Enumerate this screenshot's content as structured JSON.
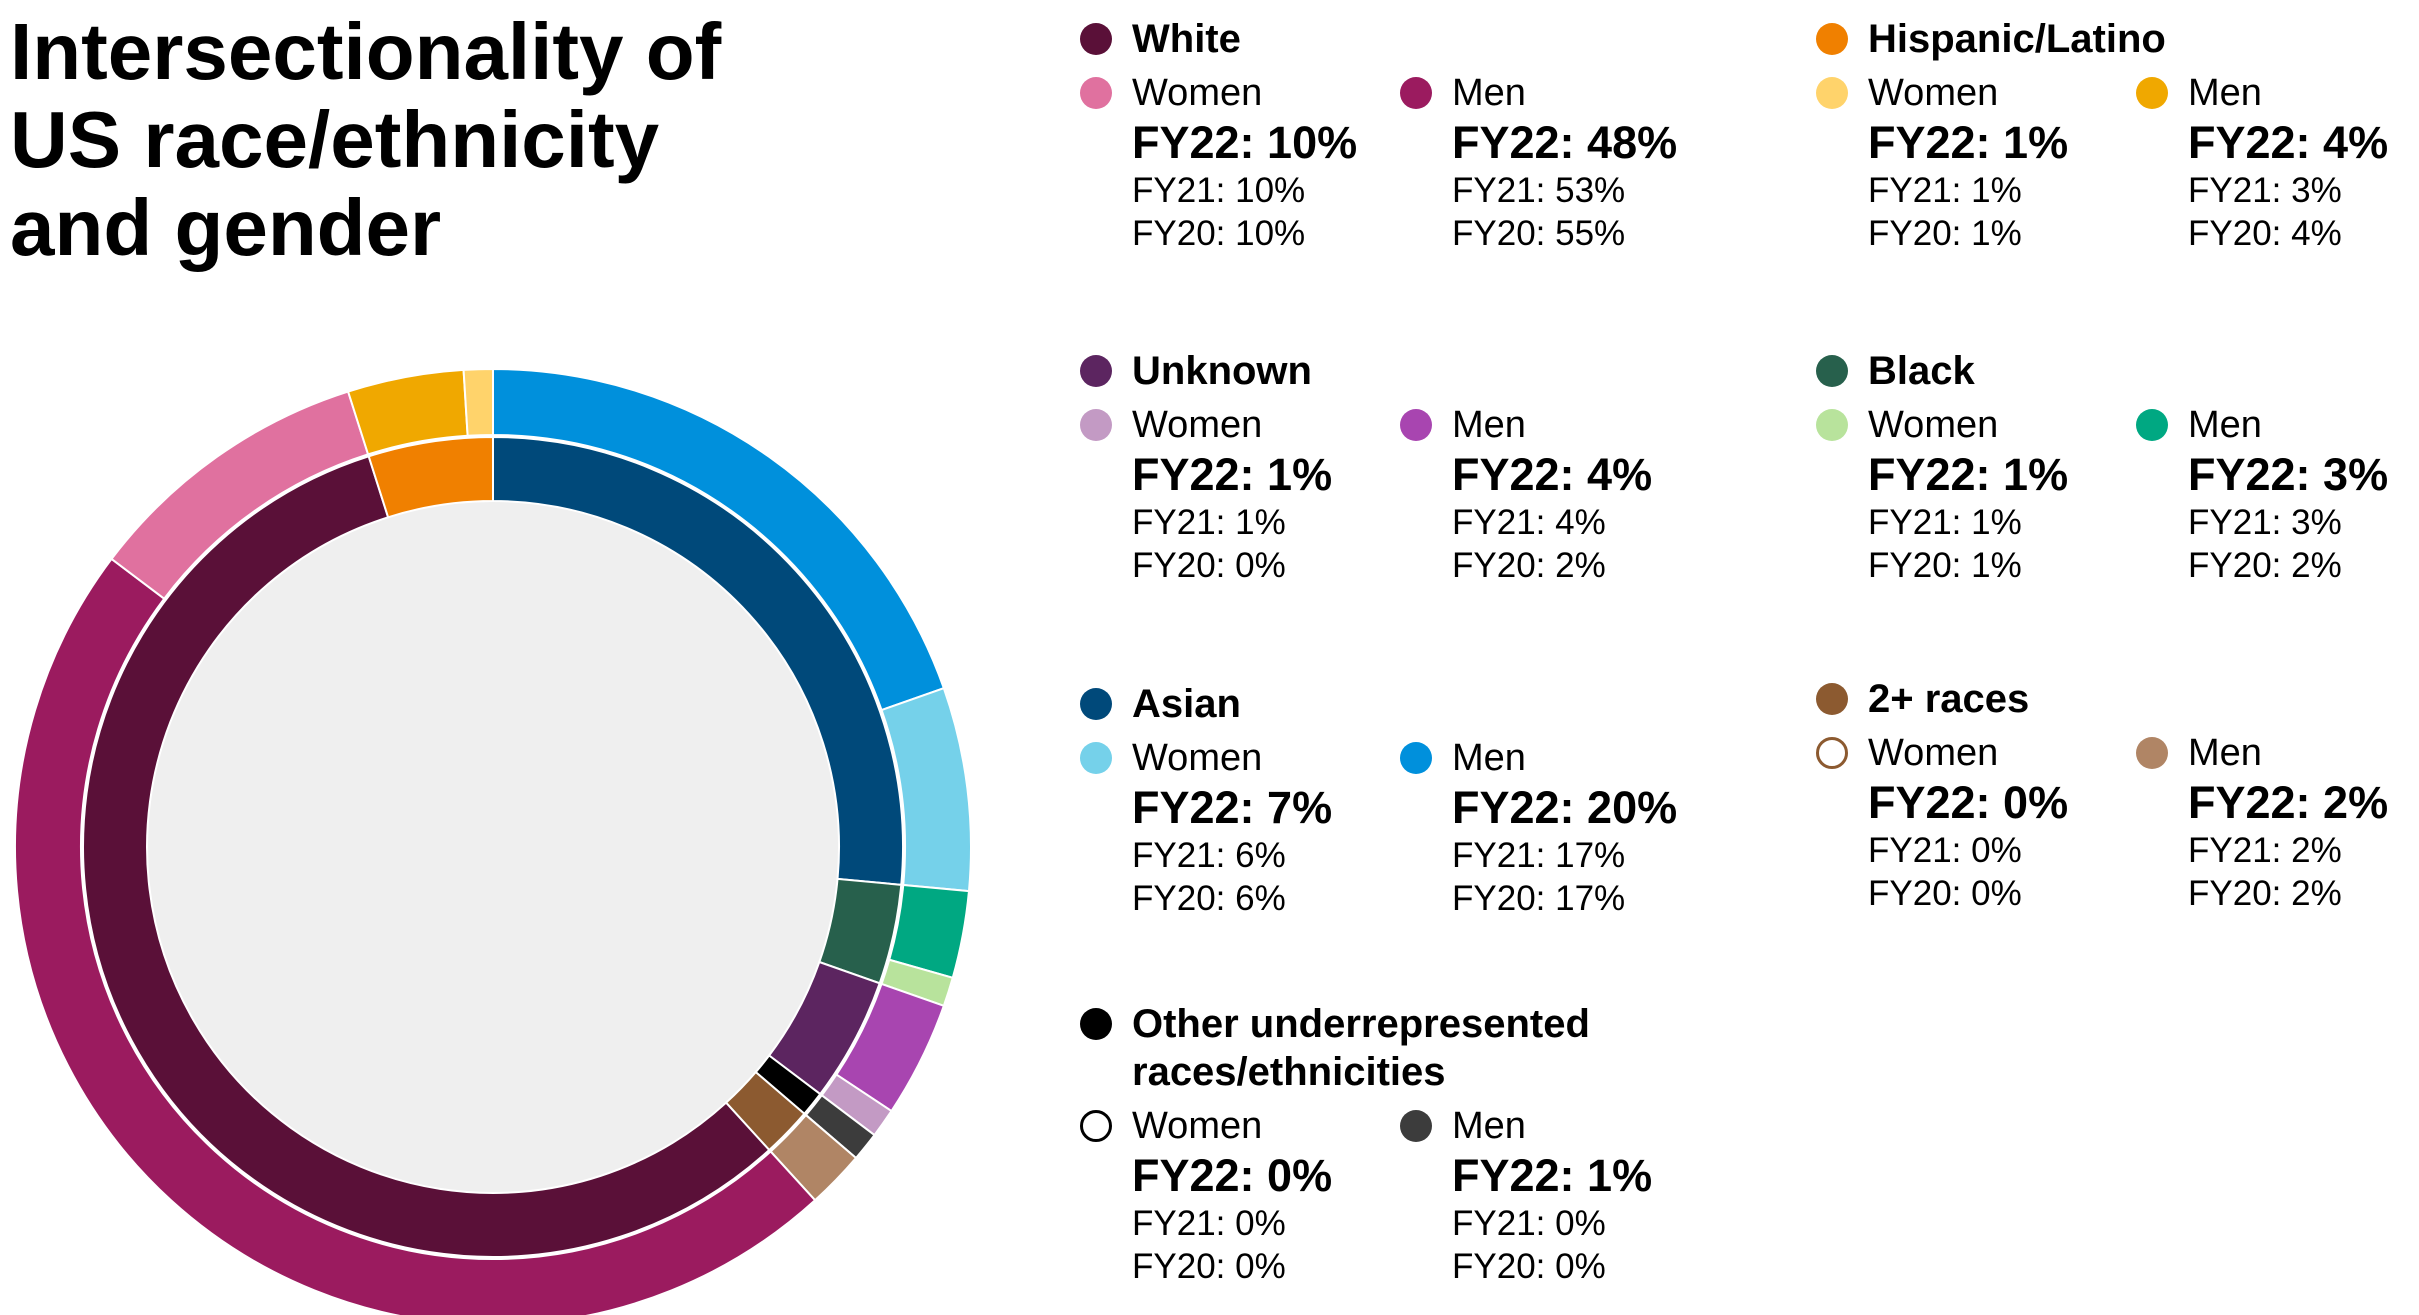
{
  "chart_data": {
    "type": "sunburst",
    "title": "Intersectionality of US race/ethnicity and gender",
    "groups": [
      {
        "name": "Asian",
        "color": "#00497a",
        "children": [
          {
            "name": "Men",
            "color": "#0090dc",
            "values": [
              20,
              17,
              17
            ],
            "value_labels": [
              "FY22: 20%",
              "FY21: 17%",
              "FY20: 17%"
            ]
          },
          {
            "name": "Women",
            "color": "#75d1ea",
            "values": [
              7,
              6,
              6
            ],
            "value_labels": [
              "FY22: 7%",
              "FY21: 6%",
              "FY20: 6%"
            ]
          }
        ]
      },
      {
        "name": "Black",
        "color": "#27604c",
        "children": [
          {
            "name": "Men",
            "color": "#00a882",
            "values": [
              3,
              3,
              2
            ],
            "value_labels": [
              "FY22: 3%",
              "FY21: 3%",
              "FY20: 2%"
            ]
          },
          {
            "name": "Women",
            "color": "#b8e39c",
            "values": [
              1,
              1,
              1
            ],
            "value_labels": [
              "FY22: 1%",
              "FY21: 1%",
              "FY20: 1%"
            ]
          }
        ]
      },
      {
        "name": "Unknown",
        "color": "#5c2560",
        "children": [
          {
            "name": "Men",
            "color": "#a845b0",
            "values": [
              4,
              4,
              2
            ],
            "value_labels": [
              "FY22: 4%",
              "FY21: 4%",
              "FY20: 2%"
            ]
          },
          {
            "name": "Women",
            "color": "#c39ac4",
            "values": [
              1,
              1,
              0
            ],
            "value_labels": [
              "FY22: 1%",
              "FY21: 1%",
              "FY20: 0%"
            ]
          }
        ]
      },
      {
        "name": "Other underrepresented races/ethnicities",
        "color": "#000000",
        "children": [
          {
            "name": "Men",
            "color": "#3c3c3c",
            "values": [
              1,
              0,
              0
            ],
            "value_labels": [
              "FY22: 1%",
              "FY21: 0%",
              "FY20: 0%"
            ]
          },
          {
            "name": "Women",
            "color": "#000000",
            "hollow": true,
            "values": [
              0,
              0,
              0
            ],
            "value_labels": [
              "FY22: 0%",
              "FY21: 0%",
              "FY20: 0%"
            ]
          }
        ]
      },
      {
        "name": "2+ races",
        "color": "#8c5a30",
        "children": [
          {
            "name": "Men",
            "color": "#b08565",
            "values": [
              2,
              2,
              2
            ],
            "value_labels": [
              "FY22: 2%",
              "FY21: 2%",
              "FY20: 2%"
            ]
          },
          {
            "name": "Women",
            "color": "#8c5a30",
            "hollow": true,
            "values": [
              0,
              0,
              0
            ],
            "value_labels": [
              "FY22: 0%",
              "FY21: 0%",
              "FY20: 0%"
            ]
          }
        ]
      },
      {
        "name": "White",
        "color": "#5a1038",
        "children": [
          {
            "name": "Men",
            "color": "#9b1b5f",
            "values": [
              48,
              53,
              55
            ],
            "value_labels": [
              "FY22: 48%",
              "FY21: 53%",
              "FY20: 55%"
            ]
          },
          {
            "name": "Women",
            "color": "#e0719f",
            "values": [
              10,
              10,
              10
            ],
            "value_labels": [
              "FY22: 10%",
              "FY21: 10%",
              "FY20: 10%"
            ]
          }
        ]
      },
      {
        "name": "Hispanic/Latino",
        "color": "#f08000",
        "children": [
          {
            "name": "Men",
            "color": "#f0a800",
            "values": [
              4,
              3,
              4
            ],
            "value_labels": [
              "FY22: 4%",
              "FY21: 3%",
              "FY20: 4%"
            ]
          },
          {
            "name": "Women",
            "color": "#ffd36b",
            "values": [
              1,
              1,
              1
            ],
            "value_labels": [
              "FY22: 1%",
              "FY21: 1%",
              "FY20: 1%"
            ]
          }
        ]
      }
    ]
  }
}
